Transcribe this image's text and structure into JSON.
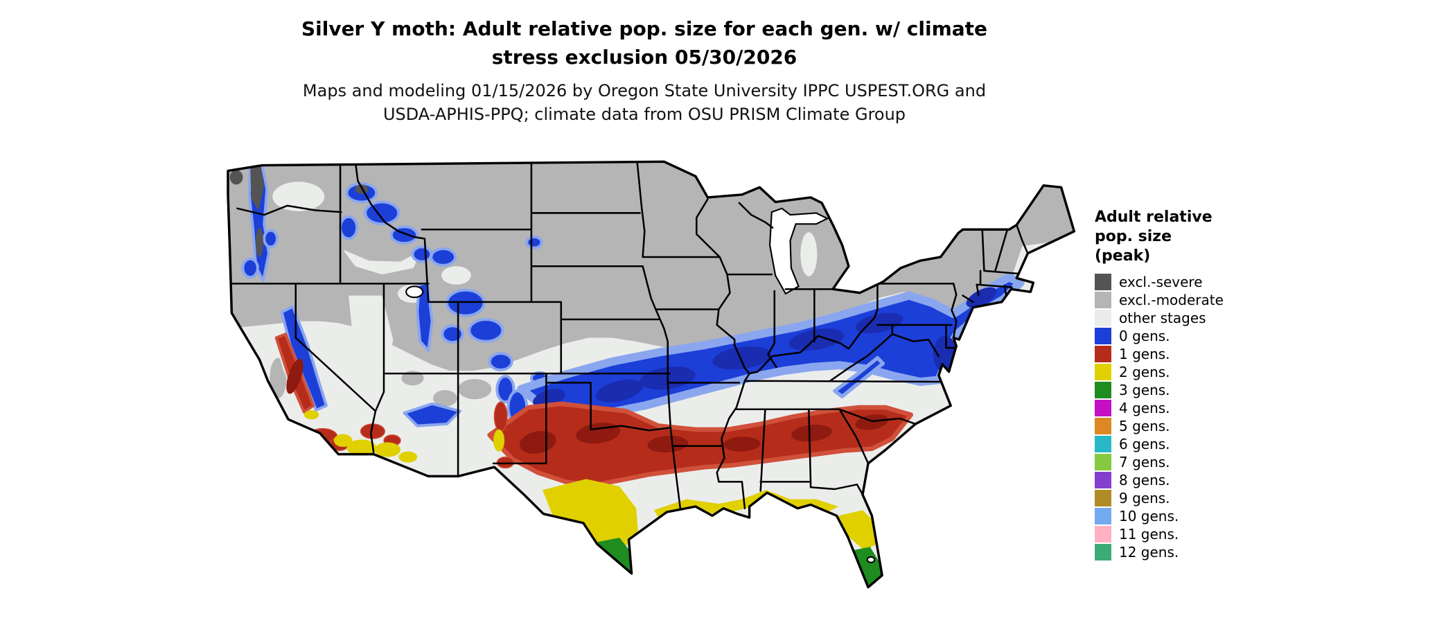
{
  "header": {
    "title_line1": "Silver Y moth: Adult relative pop. size for each gen. w/ climate",
    "title_line2": "stress exclusion 05/30/2026",
    "subtitle_line1": "Maps and modeling 01/15/2026 by Oregon State University IPPC USPEST.ORG and",
    "subtitle_line2": "USDA-APHIS-PPQ; climate data from OSU PRISM Climate Group"
  },
  "legend": {
    "title_lines": [
      "Adult relative",
      "pop. size",
      "(peak)"
    ],
    "items": [
      {
        "label": "excl.-severe",
        "color": "#545454"
      },
      {
        "label": "excl.-moderate",
        "color": "#b5b5b5"
      },
      {
        "label": "other stages",
        "color": "#ebedeb"
      },
      {
        "label": "0 gens.",
        "color": "#1c3fd8"
      },
      {
        "label": "1 gens.",
        "color": "#b52d1a"
      },
      {
        "label": "2 gens.",
        "color": "#e0d000"
      },
      {
        "label": "3 gens.",
        "color": "#1f8c1f"
      },
      {
        "label": "4 gens.",
        "color": "#c40fc4"
      },
      {
        "label": "5 gens.",
        "color": "#dd8822"
      },
      {
        "label": "6 gens.",
        "color": "#27b7c6"
      },
      {
        "label": "7 gens.",
        "color": "#84c93f"
      },
      {
        "label": "8 gens.",
        "color": "#8440cc"
      },
      {
        "label": "9 gens.",
        "color": "#b08c28"
      },
      {
        "label": "10 gens.",
        "color": "#74aaf0"
      },
      {
        "label": "11 gens.",
        "color": "#ffb1c1"
      },
      {
        "label": "12 gens.",
        "color": "#3cab78"
      }
    ]
  },
  "map": {
    "background_color": "#ffffff",
    "border_color": "#000000",
    "water_color": "#ffffff",
    "edge_blue": "#8aa6ee",
    "core_blue": "#1a2cb0",
    "edge_red": "#d0503a",
    "core_red": "#8e1a10"
  }
}
